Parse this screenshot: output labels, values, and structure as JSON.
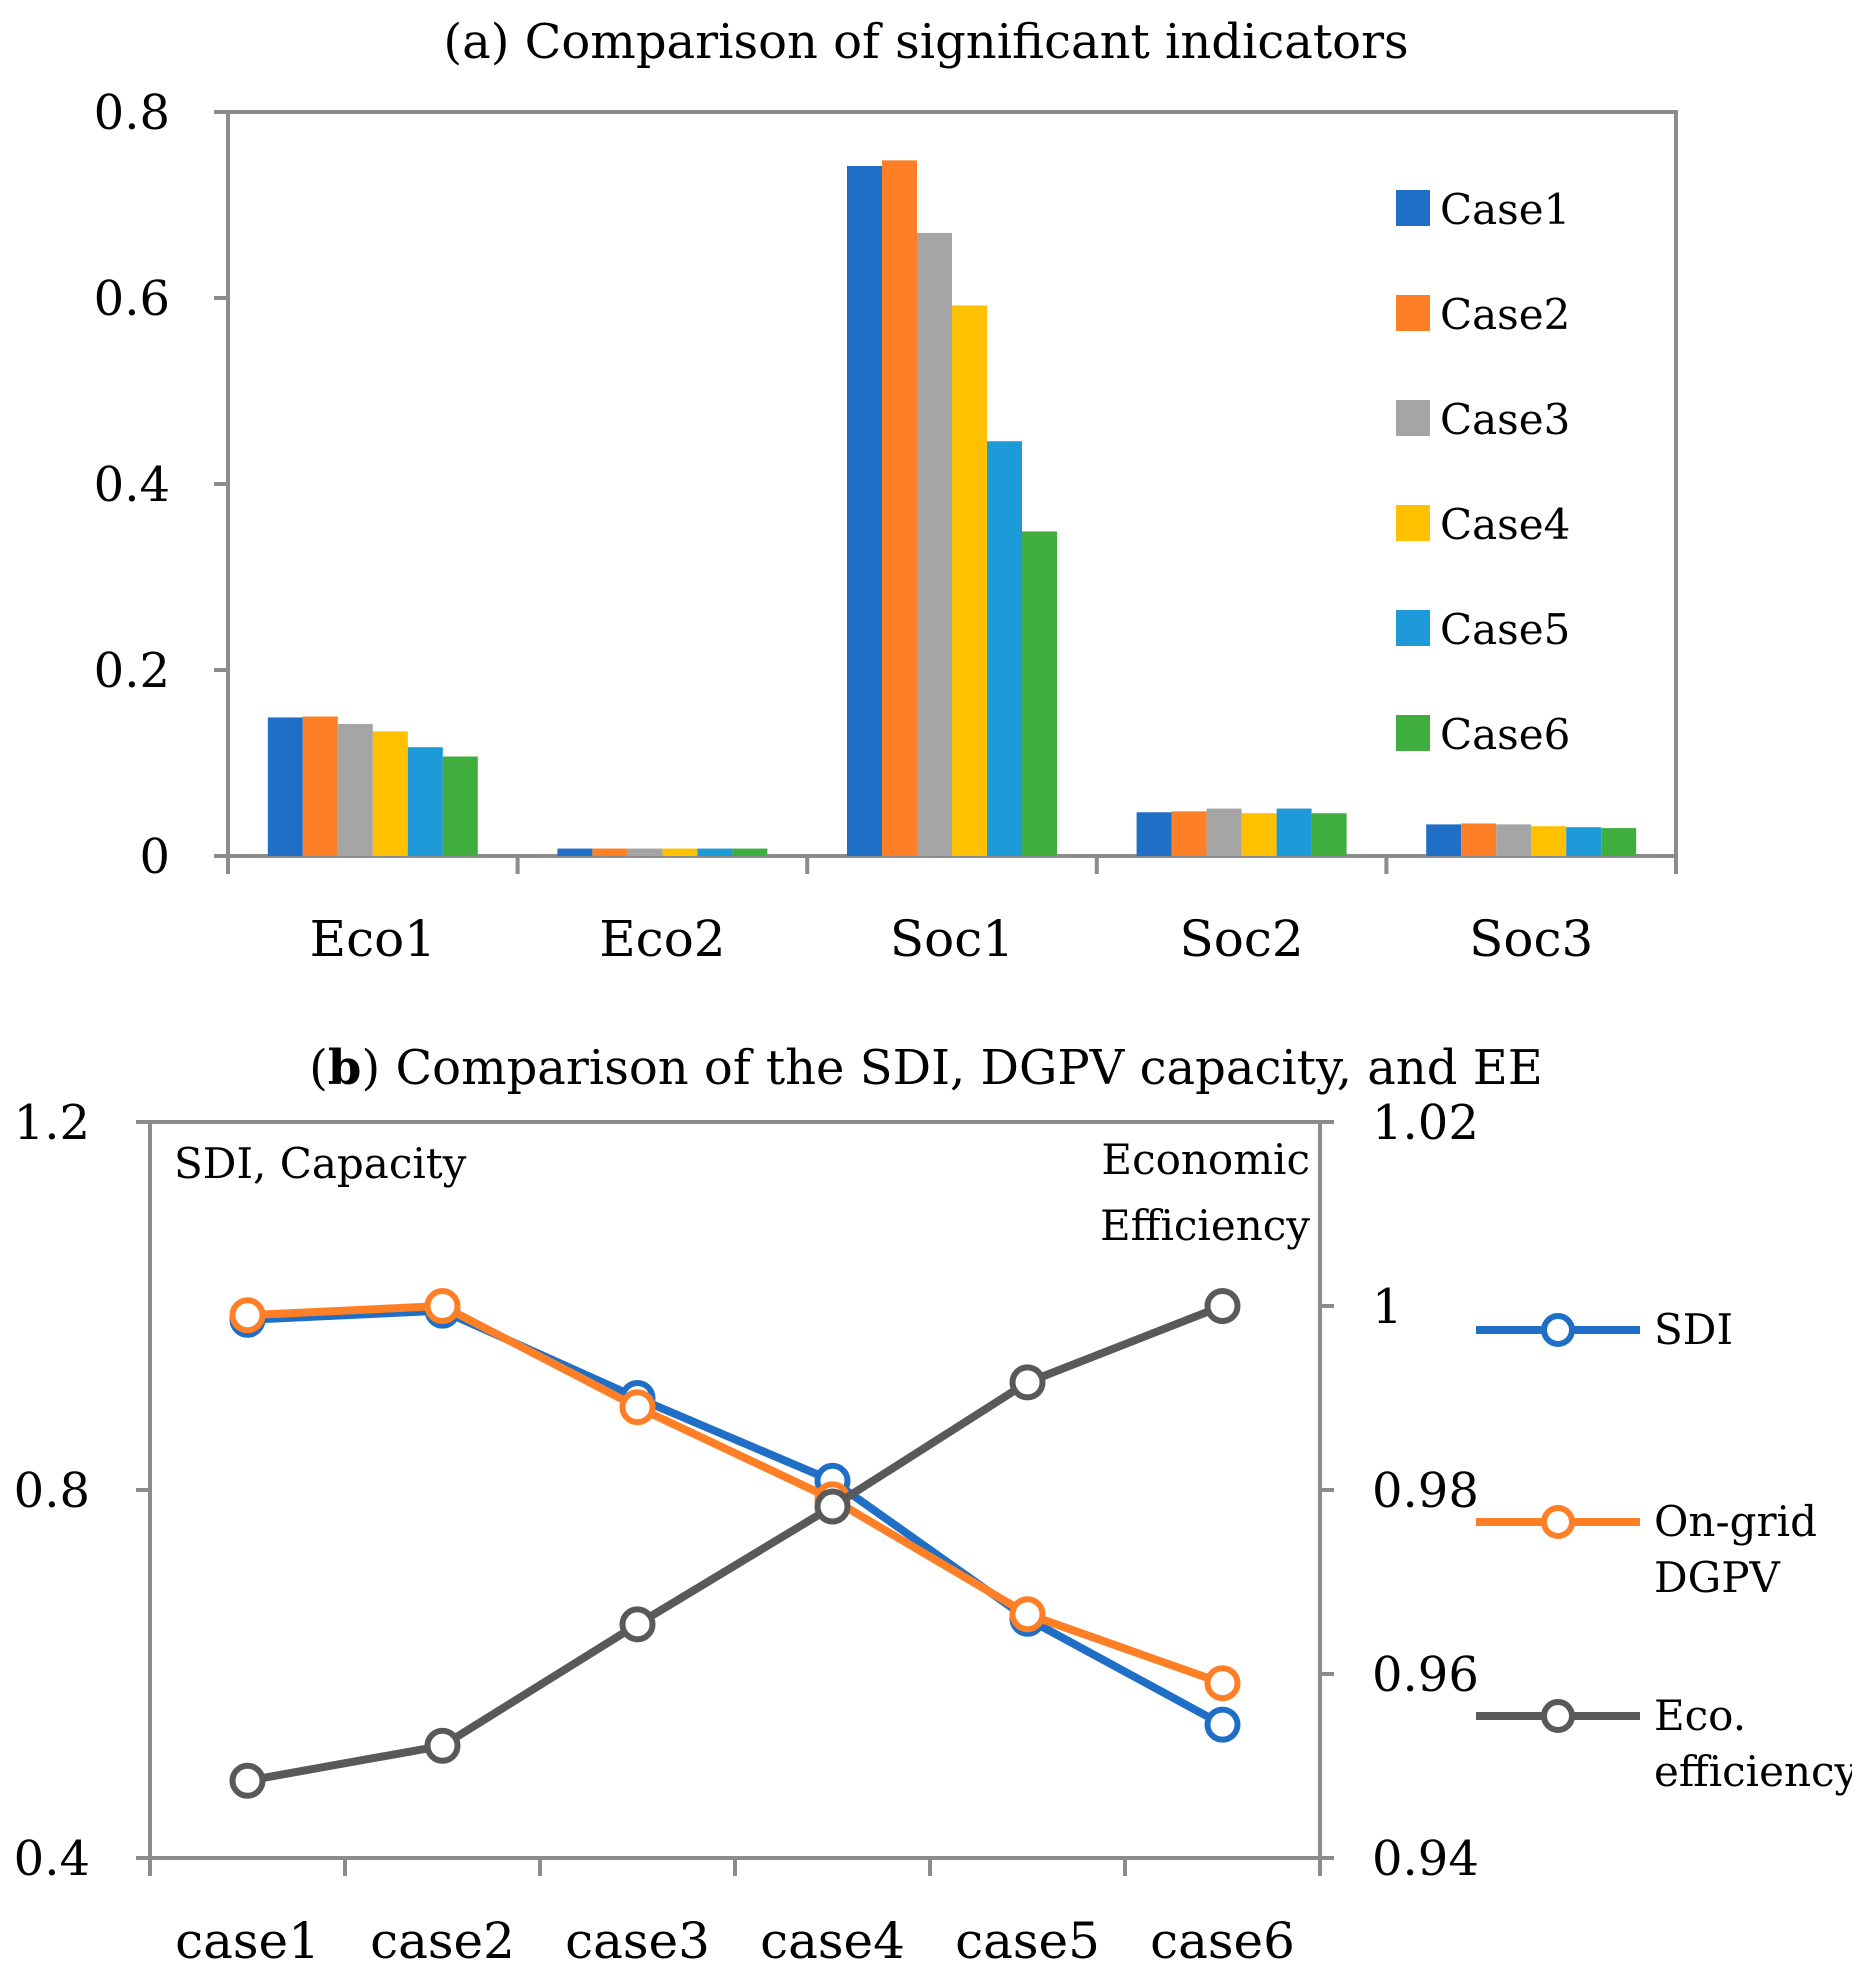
{
  "chart_data": [
    {
      "type": "bar",
      "title": "(a) Comparison of significant indicators",
      "categories": [
        "Eco1",
        "Eco2",
        "Soc1",
        "Soc2",
        "Soc3"
      ],
      "ylim": [
        0,
        0.8
      ],
      "yticks": [
        "0",
        "0.2",
        "0.4",
        "0.6",
        "0.8"
      ],
      "ytick_values": [
        0,
        0.2,
        0.4,
        0.6,
        0.8
      ],
      "legend_position": "right",
      "series": [
        {
          "name": "Case1",
          "color": "#1f6fc7",
          "values": [
            0.149,
            0.008,
            0.742,
            0.047,
            0.034
          ]
        },
        {
          "name": "Case2",
          "color": "#ff7f27",
          "values": [
            0.15,
            0.008,
            0.748,
            0.048,
            0.035
          ]
        },
        {
          "name": "Case3",
          "color": "#a5a5a5",
          "values": [
            0.142,
            0.008,
            0.67,
            0.051,
            0.034
          ]
        },
        {
          "name": "Case4",
          "color": "#ffc000",
          "values": [
            0.134,
            0.008,
            0.592,
            0.046,
            0.032
          ]
        },
        {
          "name": "Case5",
          "color": "#1e9ad8",
          "values": [
            0.117,
            0.008,
            0.446,
            0.051,
            0.031
          ]
        },
        {
          "name": "Case6",
          "color": "#3fae3f",
          "values": [
            0.107,
            0.008,
            0.349,
            0.046,
            0.03
          ]
        }
      ]
    },
    {
      "type": "line",
      "title_bold": "b",
      "title_rest": ") Comparison of the SDI, DGPV capacity, and EE",
      "title_open": "(",
      "x": [
        "case1",
        "case2",
        "case3",
        "case4",
        "case5",
        "case6"
      ],
      "ylim_left": [
        0.4,
        1.2
      ],
      "ylim_right": [
        0.94,
        1.02
      ],
      "yticks_left": [
        "0.4",
        "0.8",
        "1.2"
      ],
      "ytick_left_values": [
        0.4,
        0.8,
        1.2
      ],
      "yticks_right": [
        "0.94",
        "0.96",
        "0.98",
        "1",
        "1.02"
      ],
      "ytick_right_values": [
        0.94,
        0.96,
        0.98,
        1.0,
        1.02
      ],
      "left_axis_note": "SDI, Capacity",
      "right_axis_note": [
        "Economic",
        "Efficiency"
      ],
      "legend_position": "right",
      "series": [
        {
          "name": [
            "SDI"
          ],
          "axis": "left",
          "color": "#1f6fc7",
          "values": [
            0.985,
            0.995,
            0.9,
            0.81,
            0.66,
            0.545
          ]
        },
        {
          "name": [
            "On-grid",
            "DGPV"
          ],
          "axis": "left",
          "color": "#ff7f27",
          "values": [
            0.99,
            1.0,
            0.89,
            0.79,
            0.665,
            0.59
          ]
        },
        {
          "name": [
            "Eco.",
            "efficiency"
          ],
          "axis": "right",
          "color": "#595959",
          "values": [
            0.9484,
            0.9522,
            0.9654,
            0.9782,
            0.9917,
            1.0
          ]
        }
      ]
    }
  ]
}
